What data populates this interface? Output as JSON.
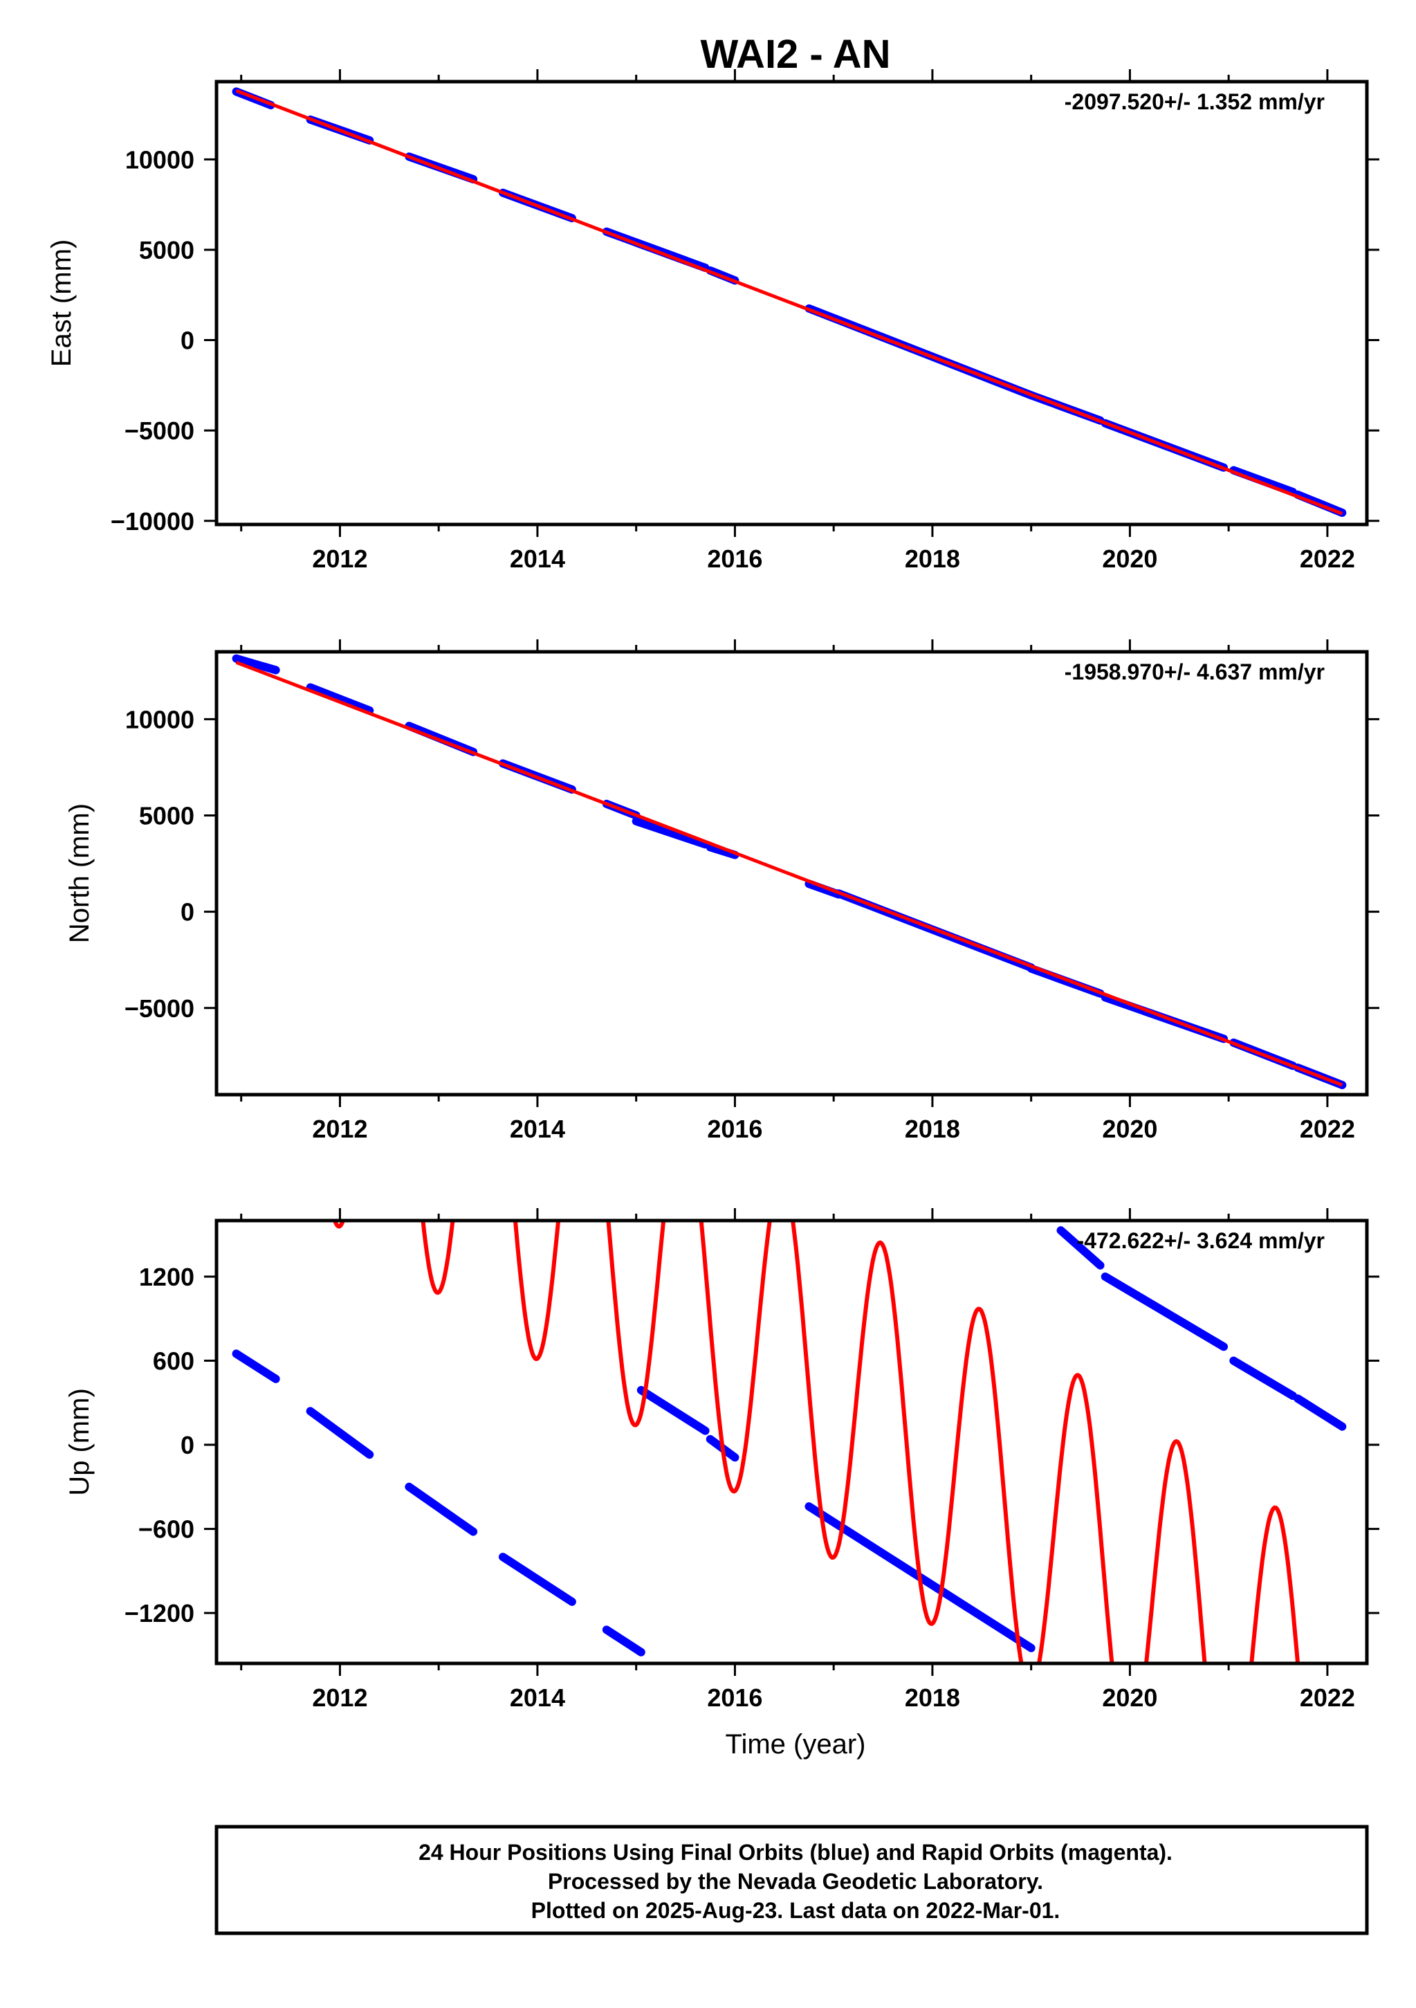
{
  "title": "WAI2 - AN",
  "colors": {
    "final": "#0000ff",
    "rapid": "#ff00ff",
    "model": "#ff0000",
    "frame": "#000000"
  },
  "footer": {
    "line1": "24 Hour Positions Using Final Orbits (blue) and Rapid Orbits (magenta).",
    "line2": "Processed by the Nevada Geodetic Laboratory.",
    "line3": "Plotted on 2025-Aug-23. Last data on 2022-Mar-01."
  },
  "chart_data": [
    {
      "type": "scatter",
      "ylabel": "East (mm)",
      "rate_label": "-2097.520+/- 1.352 mm/yr",
      "xlim": [
        2010.75,
        2022.4
      ],
      "ylim": [
        -10200,
        14300
      ],
      "xticks": [
        "2012",
        "2014",
        "2016",
        "2018",
        "2020",
        "2022"
      ],
      "xtick_values": [
        2012,
        2014,
        2016,
        2018,
        2020,
        2022
      ],
      "yticks": [
        "−10000",
        "−5000",
        "0",
        "5000",
        "10000"
      ],
      "ytick_values": [
        -10000,
        -5000,
        0,
        5000,
        10000
      ],
      "series": [
        {
          "kind": "points",
          "color": "final",
          "segments": [
            {
              "x": [
                2010.95,
                2011.3
              ],
              "y": [
                13750,
                13000
              ]
            },
            {
              "x": [
                2011.7,
                2012.3
              ],
              "y": [
                12200,
                11050
              ]
            },
            {
              "x": [
                2012.7,
                2013.35
              ],
              "y": [
                10150,
                8900
              ]
            },
            {
              "x": [
                2013.65,
                2014.35
              ],
              "y": [
                8150,
                6750
              ]
            },
            {
              "x": [
                2014.7,
                2015.5
              ],
              "y": [
                6000,
                4400
              ]
            },
            {
              "x": [
                2015.0,
                2015.7
              ],
              "y": [
                5400,
                4000
              ]
            },
            {
              "x": [
                2015.75,
                2016.0
              ],
              "y": [
                3850,
                3300
              ]
            },
            {
              "x": [
                2016.75,
                2019.0
              ],
              "y": [
                1750,
                -3050
              ]
            },
            {
              "x": [
                2019.0,
                2019.7
              ],
              "y": [
                -3050,
                -4450
              ]
            },
            {
              "x": [
                2019.75,
                2020.95
              ],
              "y": [
                -4600,
                -7050
              ]
            },
            {
              "x": [
                2021.05,
                2021.65
              ],
              "y": [
                -7200,
                -8400
              ]
            },
            {
              "x": [
                2021.7,
                2022.15
              ],
              "y": [
                -8550,
                -9550
              ]
            }
          ]
        },
        {
          "kind": "line",
          "color": "model",
          "x": [
            2010.95,
            2022.15
          ],
          "y": [
            13800,
            -9600
          ]
        }
      ]
    },
    {
      "type": "scatter",
      "ylabel": "North (mm)",
      "rate_label": "-1958.970+/- 4.637 mm/yr",
      "xlim": [
        2010.75,
        2022.4
      ],
      "ylim": [
        -9500,
        13500
      ],
      "xticks": [
        "2012",
        "2014",
        "2016",
        "2018",
        "2020",
        "2022"
      ],
      "xtick_values": [
        2012,
        2014,
        2016,
        2018,
        2020,
        2022
      ],
      "yticks": [
        "−5000",
        "0",
        "5000",
        "10000"
      ],
      "ytick_values": [
        -5000,
        0,
        5000,
        10000
      ],
      "series": [
        {
          "kind": "points",
          "color": "final",
          "segments": [
            {
              "x": [
                2010.95,
                2011.35
              ],
              "y": [
                13150,
                12550
              ]
            },
            {
              "x": [
                2011.7,
                2012.3
              ],
              "y": [
                11650,
                10450
              ]
            },
            {
              "x": [
                2012.7,
                2013.35
              ],
              "y": [
                9650,
                8300
              ]
            },
            {
              "x": [
                2013.65,
                2014.35
              ],
              "y": [
                7700,
                6350
              ]
            },
            {
              "x": [
                2014.7,
                2015.0
              ],
              "y": [
                5600,
                5000
              ]
            },
            {
              "x": [
                2015.0,
                2015.7
              ],
              "y": [
                4700,
                3500
              ]
            },
            {
              "x": [
                2015.75,
                2016.0
              ],
              "y": [
                3350,
                2950
              ]
            },
            {
              "x": [
                2016.75,
                2017.05
              ],
              "y": [
                1450,
                900
              ]
            },
            {
              "x": [
                2017.05,
                2019.0
              ],
              "y": [
                950,
                -2900
              ]
            },
            {
              "x": [
                2019.0,
                2019.7
              ],
              "y": [
                -2950,
                -4250
              ]
            },
            {
              "x": [
                2019.75,
                2020.95
              ],
              "y": [
                -4450,
                -6600
              ]
            },
            {
              "x": [
                2021.05,
                2021.65
              ],
              "y": [
                -6800,
                -8000
              ]
            },
            {
              "x": [
                2021.7,
                2022.15
              ],
              "y": [
                -8100,
                -9000
              ]
            }
          ]
        },
        {
          "kind": "line",
          "color": "model",
          "x": [
            2010.95,
            2022.15
          ],
          "y": [
            12950,
            -9000
          ]
        }
      ]
    },
    {
      "type": "scatter",
      "ylabel": "Up (mm)",
      "xlabel": "Time (year)",
      "rate_label": "-472.622+/- 3.624 mm/yr",
      "xlim": [
        2010.75,
        2022.4
      ],
      "ylim": [
        -1560,
        1600
      ],
      "xticks": [
        "2012",
        "2014",
        "2016",
        "2018",
        "2020",
        "2022"
      ],
      "xtick_values": [
        2012,
        2014,
        2016,
        2018,
        2020,
        2022
      ],
      "yticks": [
        "−1200",
        "−600",
        "0",
        "600",
        "1200"
      ],
      "ytick_values": [
        -1200,
        -600,
        0,
        600,
        1200
      ],
      "series": [
        {
          "kind": "points",
          "color": "final",
          "segments": [
            {
              "x": [
                2010.95,
                2011.35
              ],
              "y": [
                650,
                470
              ]
            },
            {
              "x": [
                2011.7,
                2012.3
              ],
              "y": [
                240,
                -70
              ]
            },
            {
              "x": [
                2012.7,
                2013.35
              ],
              "y": [
                -300,
                -620
              ]
            },
            {
              "x": [
                2013.65,
                2014.35
              ],
              "y": [
                -800,
                -1120
              ]
            },
            {
              "x": [
                2014.7,
                2015.05
              ],
              "y": [
                -1320,
                -1480
              ]
            },
            {
              "x": [
                2015.05,
                2015.7
              ],
              "y": [
                390,
                100
              ]
            },
            {
              "x": [
                2015.75,
                2016.0
              ],
              "y": [
                40,
                -90
              ]
            },
            {
              "x": [
                2016.75,
                2019.0
              ],
              "y": [
                -440,
                -1450
              ]
            },
            {
              "x": [
                2019.3,
                2019.7
              ],
              "y": [
                1530,
                1280
              ]
            },
            {
              "x": [
                2019.75,
                2020.95
              ],
              "y": [
                1200,
                700
              ]
            },
            {
              "x": [
                2021.05,
                2021.65
              ],
              "y": [
                600,
                350
              ]
            },
            {
              "x": [
                2021.7,
                2022.15
              ],
              "y": [
                330,
                130
              ]
            }
          ]
        },
        {
          "kind": "line",
          "color": "model",
          "trend_mm_per_yr": -472.622,
          "ref_year": 2016.0,
          "ref_value": 900,
          "amplitude": 1240,
          "period_yr": 1.0,
          "phase_yr": 0.48
        }
      ]
    }
  ]
}
